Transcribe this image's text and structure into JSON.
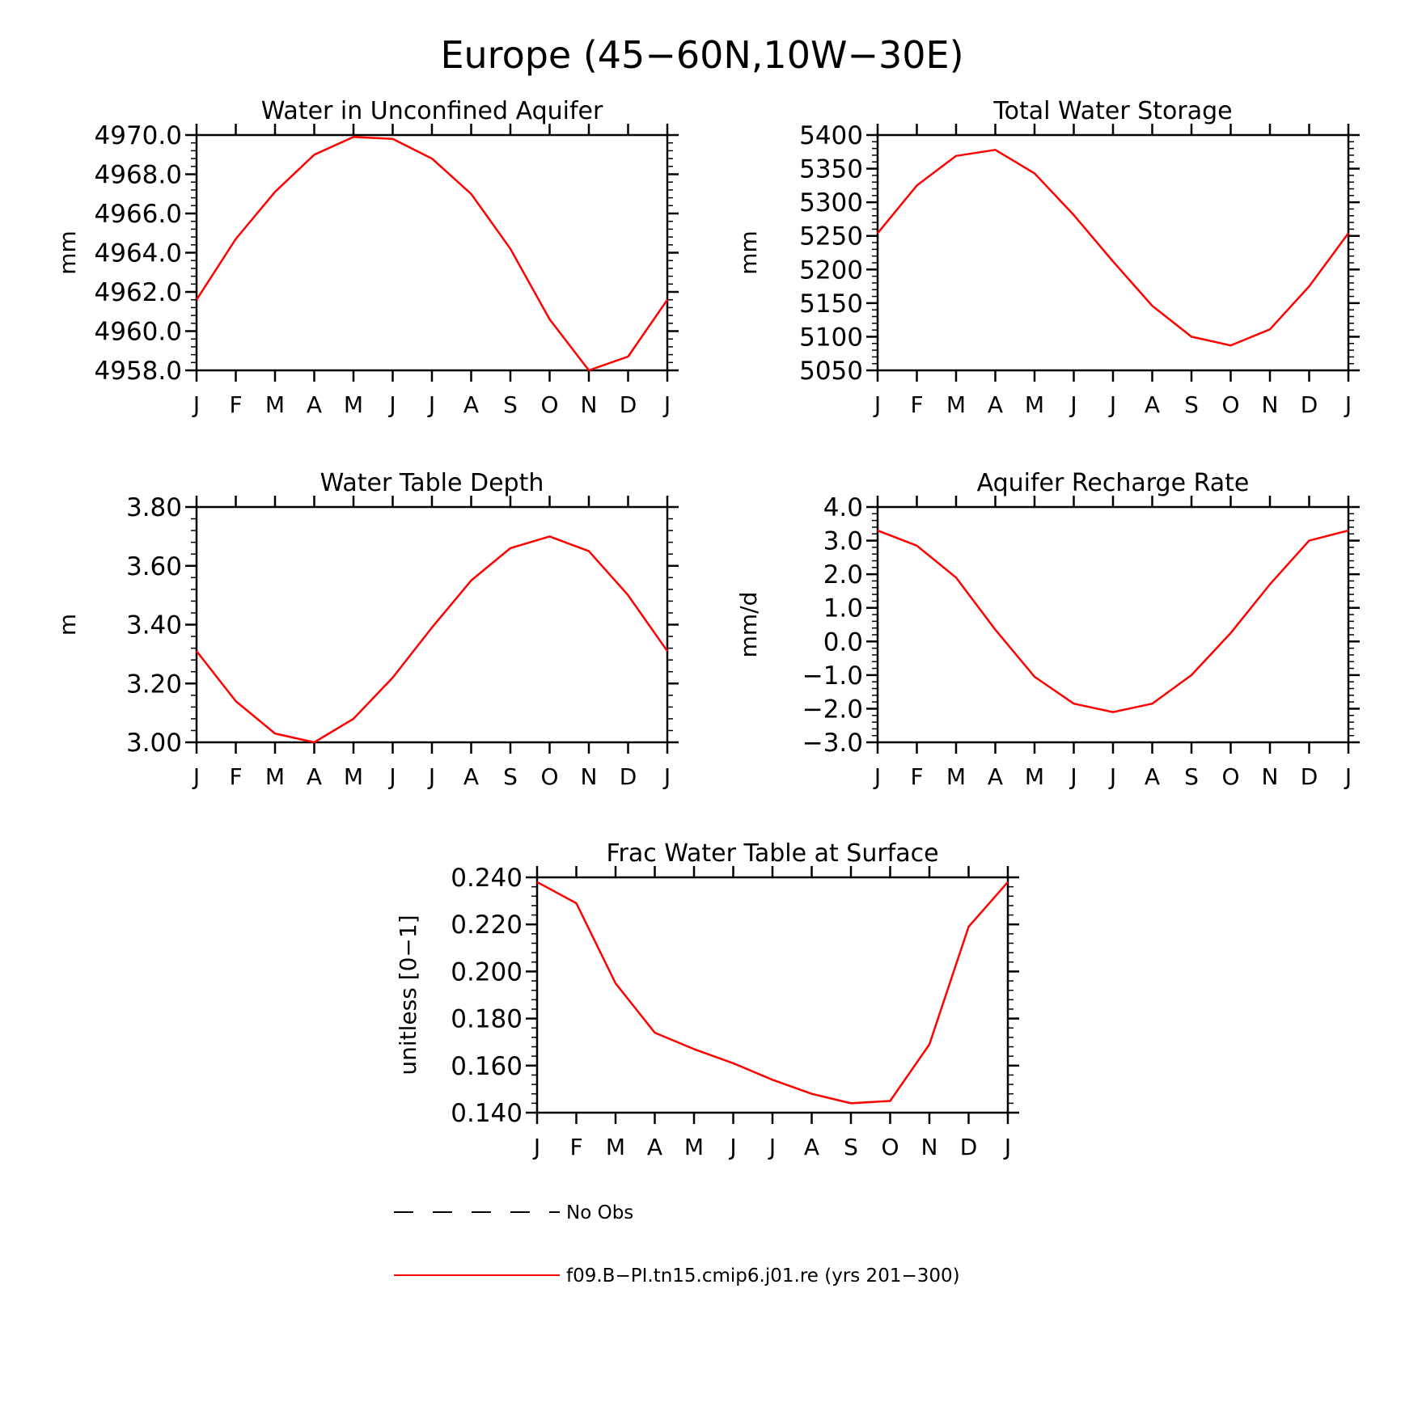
{
  "page_title": "Europe (45−60N,10W−30E)",
  "colors": {
    "series": "#ff0000",
    "axis": "#000000",
    "background": "#ffffff"
  },
  "chart_data": [
    {
      "type": "line",
      "title": "Water in Unconfined Aquifer",
      "ylabel": "mm",
      "xlabel": "",
      "categories": [
        "J",
        "F",
        "M",
        "A",
        "M",
        "J",
        "J",
        "A",
        "S",
        "O",
        "N",
        "D",
        "J"
      ],
      "ylim": [
        4958.0,
        4970.0
      ],
      "yticks": [
        "4958.0",
        "4960.0",
        "4962.0",
        "4964.0",
        "4966.0",
        "4968.0",
        "4970.0"
      ],
      "grid": false,
      "series": [
        {
          "name": "f09.B−PI.tn15.cmip6.j01.re (yrs 201−300)",
          "color": "#ff0000",
          "values": [
            4961.6,
            4964.7,
            4967.1,
            4969.0,
            4969.9,
            4969.8,
            4968.8,
            4967.0,
            4964.2,
            4960.6,
            4958.0,
            4958.7,
            4961.6
          ]
        }
      ]
    },
    {
      "type": "line",
      "title": "Total Water Storage",
      "ylabel": "mm",
      "xlabel": "",
      "categories": [
        "J",
        "F",
        "M",
        "A",
        "M",
        "J",
        "J",
        "A",
        "S",
        "O",
        "N",
        "D",
        "J"
      ],
      "ylim": [
        5050,
        5400
      ],
      "yticks": [
        "5050",
        "5100",
        "5150",
        "5200",
        "5250",
        "5300",
        "5350",
        "5400"
      ],
      "grid": false,
      "series": [
        {
          "name": "f09.B−PI.tn15.cmip6.j01.re (yrs 201−300)",
          "color": "#ff0000",
          "values": [
            5254,
            5325,
            5369,
            5378,
            5343,
            5281,
            5212,
            5146,
            5100,
            5087,
            5111,
            5175,
            5254
          ]
        }
      ]
    },
    {
      "type": "line",
      "title": "Water Table Depth",
      "ylabel": "m",
      "xlabel": "",
      "categories": [
        "J",
        "F",
        "M",
        "A",
        "M",
        "J",
        "J",
        "A",
        "S",
        "O",
        "N",
        "D",
        "J"
      ],
      "ylim": [
        3.0,
        3.8
      ],
      "yticks": [
        "3.00",
        "3.20",
        "3.40",
        "3.60",
        "3.80"
      ],
      "grid": false,
      "series": [
        {
          "name": "f09.B−PI.tn15.cmip6.j01.re (yrs 201−300)",
          "color": "#ff0000",
          "values": [
            3.31,
            3.14,
            3.03,
            3.0,
            3.08,
            3.22,
            3.39,
            3.55,
            3.66,
            3.7,
            3.65,
            3.5,
            3.31
          ]
        }
      ]
    },
    {
      "type": "line",
      "title": "Aquifer Recharge Rate",
      "ylabel": "mm/d",
      "xlabel": "",
      "categories": [
        "J",
        "F",
        "M",
        "A",
        "M",
        "J",
        "J",
        "A",
        "S",
        "O",
        "N",
        "D",
        "J"
      ],
      "ylim": [
        -3.0,
        4.0
      ],
      "yticks": [
        "−3.0",
        "−2.0",
        "−1.0",
        "0.0",
        "1.0",
        "2.0",
        "3.0",
        "4.0"
      ],
      "grid": false,
      "series": [
        {
          "name": "f09.B−PI.tn15.cmip6.j01.re (yrs 201−300)",
          "color": "#ff0000",
          "values": [
            3.3,
            2.85,
            1.9,
            0.35,
            -1.05,
            -1.85,
            -2.1,
            -1.85,
            -1.0,
            0.25,
            1.7,
            3.0,
            3.3
          ]
        }
      ]
    },
    {
      "type": "line",
      "title": "Frac Water Table at Surface",
      "ylabel": "unitless [0−1]",
      "xlabel": "",
      "categories": [
        "J",
        "F",
        "M",
        "A",
        "M",
        "J",
        "J",
        "A",
        "S",
        "O",
        "N",
        "D",
        "J"
      ],
      "ylim": [
        0.14,
        0.24
      ],
      "yticks": [
        "0.140",
        "0.160",
        "0.180",
        "0.200",
        "0.220",
        "0.240"
      ],
      "grid": false,
      "series": [
        {
          "name": "f09.B−PI.tn15.cmip6.j01.re (yrs 201−300)",
          "color": "#ff0000",
          "values": [
            0.238,
            0.229,
            0.195,
            0.174,
            0.167,
            0.161,
            0.154,
            0.148,
            0.144,
            0.145,
            0.169,
            0.219,
            0.238
          ]
        }
      ]
    }
  ],
  "legend": [
    {
      "label": "No Obs",
      "style": "dashed",
      "color": "#000000"
    },
    {
      "label": "f09.B−PI.tn15.cmip6.j01.re (yrs 201−300)",
      "style": "solid",
      "color": "#ff0000"
    }
  ]
}
